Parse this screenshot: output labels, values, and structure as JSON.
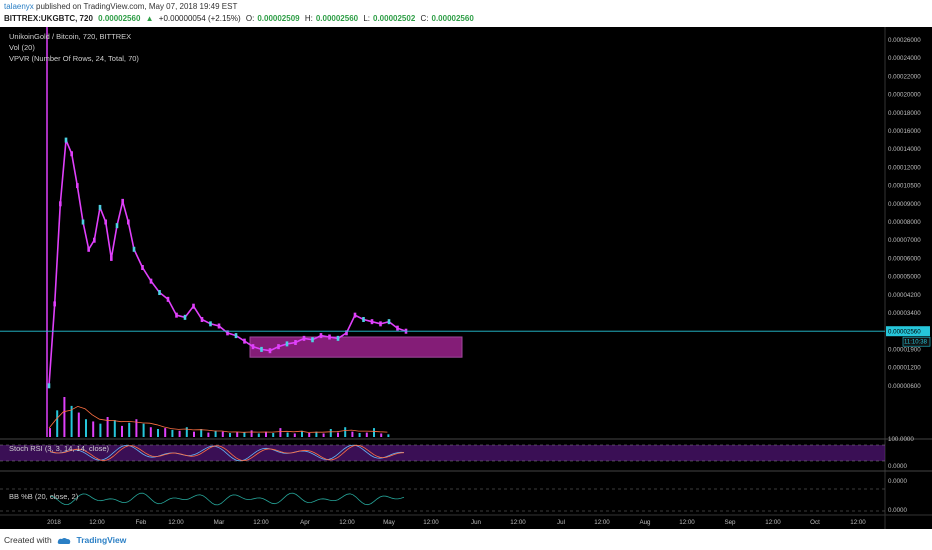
{
  "header": {
    "publisher": "talaenyx",
    "published_text": "published on TradingView.com, May 07, 2018 19:49 EST",
    "symbol": "BITTREX:UKGBTC, 720",
    "price": "0.00002560",
    "change_arrow": "▲",
    "change": "+0.00000054 (+2.15%)",
    "ohlc": {
      "o_label": "O:",
      "o": "0.00002509",
      "h_label": "H:",
      "h": "0.00002560",
      "l_label": "L:",
      "l": "0.00002502",
      "c_label": "C:",
      "c": "0.00002560"
    }
  },
  "legends": {
    "title": "UnikoinGold / Bitcoin, 720, BITTREX",
    "vol": "Vol (20)",
    "vpvr": "VPVR (Number Of Rows, 24, Total, 70)",
    "stoch": "Stoch RSI (3, 3, 14, 14, close)",
    "bb": "BB %B (20, close, 2)"
  },
  "footer": {
    "created_with": "Created with",
    "brand": "TradingView"
  },
  "colors": {
    "candle": "#e040fb",
    "volume": "#26c6da",
    "rsi_band": "#6a1b9a",
    "zone": "#b0279f",
    "ma": "#ff7043",
    "bb_line": "#26a69a",
    "last_price": "#26c6da"
  },
  "chart_data": {
    "type": "line",
    "title": "UnikoinGold / Bitcoin, 720, BITTREX",
    "x_ticks": [
      "2018",
      "12:00",
      "Feb",
      "12:00",
      "Mar",
      "12:00",
      "Apr",
      "12:00",
      "May",
      "12:00",
      "Jun",
      "12:00",
      "Jul",
      "12:00",
      "Aug",
      "12:00",
      "Sep",
      "12:00",
      "Oct",
      "12:00"
    ],
    "y_ticks": [
      "0.00026000",
      "0.00024000",
      "0.00022000",
      "0.00020000",
      "0.00018000",
      "0.00016000",
      "0.00014000",
      "0.00012000",
      "0.00010500",
      "0.00009000",
      "0.00008000",
      "0.00007000",
      "0.00006000",
      "0.00005000",
      "0.00004200",
      "0.00003400",
      "0.00002560",
      "0.00001900",
      "0.00001200",
      "0.00000600"
    ],
    "last_price_label": "0.00002560",
    "countdown_label": "11:10:38",
    "rsi_ticks": [
      "100.0000",
      "0.0000"
    ],
    "bb_ticks": [
      "0.0000",
      "0.0000"
    ],
    "price_series": {
      "name": "UKGBTC",
      "x": [
        "2018-01-01",
        "2018-01-03",
        "2018-01-05",
        "2018-01-07",
        "2018-01-09",
        "2018-01-11",
        "2018-01-13",
        "2018-01-15",
        "2018-01-17",
        "2018-01-19",
        "2018-01-21",
        "2018-01-23",
        "2018-01-25",
        "2018-01-27",
        "2018-01-29",
        "2018-01-31",
        "2018-02-03",
        "2018-02-06",
        "2018-02-09",
        "2018-02-12",
        "2018-02-15",
        "2018-02-18",
        "2018-02-21",
        "2018-02-24",
        "2018-02-27",
        "2018-03-02",
        "2018-03-05",
        "2018-03-08",
        "2018-03-11",
        "2018-03-14",
        "2018-03-17",
        "2018-03-20",
        "2018-03-23",
        "2018-03-26",
        "2018-03-29",
        "2018-04-01",
        "2018-04-04",
        "2018-04-07",
        "2018-04-10",
        "2018-04-13",
        "2018-04-16",
        "2018-04-19",
        "2018-04-22",
        "2018-04-25",
        "2018-04-28",
        "2018-05-01",
        "2018-05-04",
        "2018-05-07"
      ],
      "y": [
        5e-06,
        3.8e-05,
        9e-05,
        0.00015,
        0.000135,
        0.000105,
        8e-05,
        6.5e-05,
        7e-05,
        8.8e-05,
        8e-05,
        6e-05,
        7.8e-05,
        9.2e-05,
        8e-05,
        6.5e-05,
        5.5e-05,
        4.8e-05,
        4.3e-05,
        4e-05,
        3.3e-05,
        3.2e-05,
        3.7e-05,
        3.1e-05,
        2.9e-05,
        2.8e-05,
        2.5e-05,
        2.4e-05,
        2.2e-05,
        2e-05,
        1.9e-05,
        1.85e-05,
        2e-05,
        2.1e-05,
        2.15e-05,
        2.3e-05,
        2.25e-05,
        2.4e-05,
        2.35e-05,
        2.3e-05,
        2.5e-05,
        3.3e-05,
        3.1e-05,
        3e-05,
        2.9e-05,
        3e-05,
        2.7e-05,
        2.56e-05
      ]
    },
    "volume_values": [
      20,
      60,
      90,
      70,
      55,
      40,
      35,
      30,
      45,
      38,
      25,
      32,
      40,
      30,
      22,
      18,
      20,
      16,
      14,
      22,
      12,
      18,
      10,
      14,
      12,
      9,
      11,
      10,
      15,
      8,
      12,
      9,
      20,
      10,
      8,
      14,
      9,
      12,
      8,
      18,
      10,
      22,
      12,
      9,
      10,
      20,
      8,
      6
    ]
  }
}
